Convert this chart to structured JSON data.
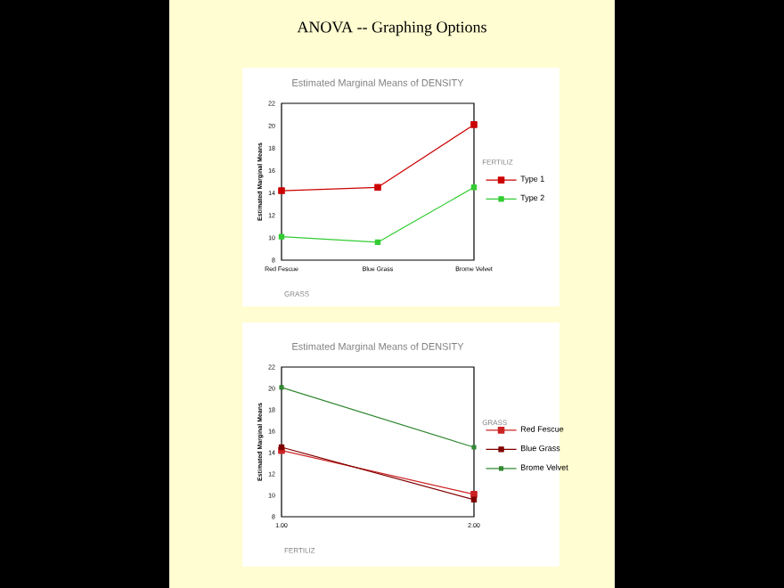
{
  "chart_data": [
    {
      "type": "line",
      "title": "Estimated Marginal Means of DENSITY",
      "annotations": [
        "ANOVA -- Graphing Options"
      ],
      "xlabel": "GRASS",
      "ylabel": "Estimated Marginal Means",
      "legend_title": "FERTILIZ",
      "categories": [
        "Red Fescue",
        "Blue Grass",
        "Brome Velvet"
      ],
      "series": [
        {
          "name": "Type 1",
          "color": "#cc0000",
          "values": [
            14.2,
            14.5,
            20.1
          ]
        },
        {
          "name": "Type 2",
          "color": "#33cc33",
          "values": [
            10.1,
            9.6,
            14.5
          ]
        }
      ],
      "ylim": [
        8,
        22
      ],
      "yticks": [
        8,
        10,
        12,
        14,
        16,
        18,
        20,
        22
      ],
      "legend": "right",
      "marker": "square"
    },
    {
      "type": "line",
      "title": "Estimated Marginal Means of DENSITY",
      "xlabel": "FERTILIZ",
      "ylabel": "Estimated Marginal Means",
      "legend_title": "GRASS",
      "x": [
        1,
        2
      ],
      "series": [
        {
          "name": "Red Fescue",
          "color": "#cc2222",
          "values": [
            14.2,
            10.1
          ]
        },
        {
          "name": "Blue Grass",
          "color": "#800000",
          "values": [
            14.5,
            9.6
          ]
        },
        {
          "name": "Brome Velvet",
          "color": "#338833",
          "values": [
            20.1,
            14.5
          ]
        }
      ],
      "xlim": [
        1,
        2
      ],
      "xticks": [
        {
          "value": 1,
          "label": "1.00"
        },
        {
          "value": 2,
          "label": "2.00"
        }
      ],
      "ylim": [
        8,
        22
      ],
      "yticks": [
        8,
        10,
        12,
        14,
        16,
        18,
        20,
        22
      ],
      "legend": "right",
      "marker": "square"
    }
  ]
}
